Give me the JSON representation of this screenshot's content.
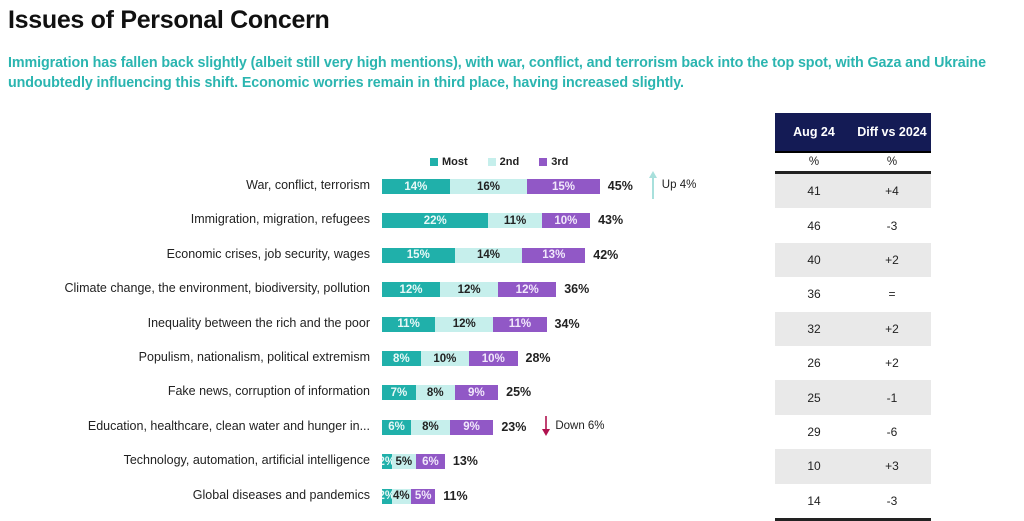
{
  "header": {
    "title": "Issues of Personal Concern",
    "subtitle": "Immigration has fallen back slightly (albeit still very high mentions), with war, conflict, and terrorism back into the top spot,  with Gaza and Ukraine undoubtedly influencing this shift. Economic worries remain in third place, having increased slightly."
  },
  "colors": {
    "accent_text": "#2bb5b0",
    "most": "#20b0aa",
    "second": "#c6efec",
    "third": "#9158c6",
    "table_header": "#141b55",
    "up_arrow": "#a8e0dc",
    "down_arrow": "#b0124f"
  },
  "chart_data": {
    "type": "bar",
    "orientation": "horizontal",
    "stacked": true,
    "title": "Issues of Personal Concern",
    "legend": [
      "Most",
      "2nd",
      "3rd"
    ],
    "legend_position": "top",
    "categories": [
      "War, conflict, terrorism",
      "Immigration, migration, refugees",
      "Economic crises, job security, wages",
      "Climate change, the environment, biodiversity, pollution",
      "Inequality between the rich and the poor",
      "Populism, nationalism, political extremism",
      "Fake news, corruption of information",
      "Education, healthcare, clean water and hunger in...",
      "Technology, automation, artificial intelligence",
      "Global diseases and pandemics"
    ],
    "series": [
      {
        "name": "Most",
        "values": [
          14,
          22,
          15,
          12,
          11,
          8,
          7,
          6,
          2,
          2
        ]
      },
      {
        "name": "2nd",
        "values": [
          16,
          11,
          14,
          12,
          12,
          10,
          8,
          8,
          5,
          4
        ]
      },
      {
        "name": "3rd",
        "values": [
          15,
          10,
          13,
          12,
          11,
          10,
          9,
          9,
          6,
          5
        ]
      }
    ],
    "totals": [
      45,
      43,
      42,
      36,
      34,
      28,
      25,
      23,
      13,
      11
    ],
    "value_suffix": "%",
    "annotations": [
      {
        "row": 0,
        "direction": "up",
        "text": "Up 4%"
      },
      {
        "row": 7,
        "direction": "down",
        "text": "Down 6%"
      }
    ],
    "xlabel": "",
    "ylabel": "",
    "grid": false
  },
  "table": {
    "headers": [
      "Aug 24",
      "Diff vs 2024"
    ],
    "units": [
      "%",
      "%"
    ],
    "rows": [
      [
        "41",
        "+4"
      ],
      [
        "46",
        "-3"
      ],
      [
        "40",
        "+2"
      ],
      [
        "36",
        "="
      ],
      [
        "32",
        "+2"
      ],
      [
        "26",
        "+2"
      ],
      [
        "25",
        "-1"
      ],
      [
        "29",
        "-6"
      ],
      [
        "10",
        "+3"
      ],
      [
        "14",
        "-3"
      ]
    ]
  }
}
